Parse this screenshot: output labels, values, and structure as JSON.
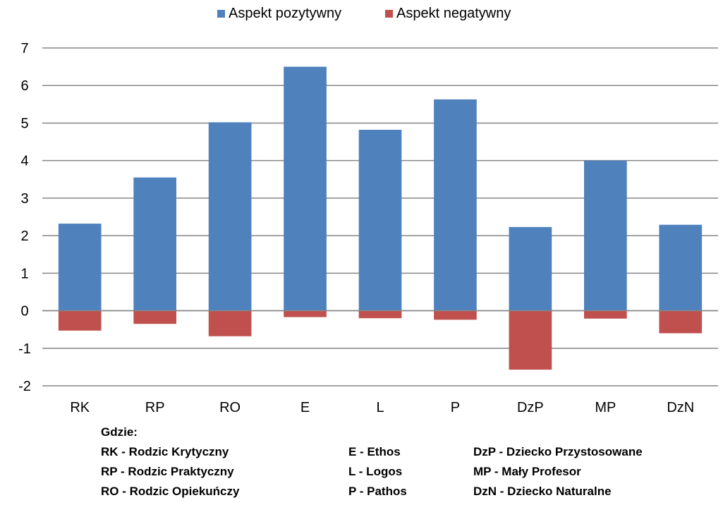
{
  "chart_data": {
    "type": "bar",
    "stacked": true,
    "categories": [
      "RK",
      "RP",
      "RO",
      "E",
      "L",
      "P",
      "DzP",
      "MP",
      "DzN"
    ],
    "series": [
      {
        "name": "Aspekt pozytywny",
        "color": "#4f81bd",
        "values": [
          2.32,
          3.55,
          5.02,
          6.5,
          4.82,
          5.63,
          2.23,
          4.0,
          2.29
        ]
      },
      {
        "name": "Aspekt negatywny",
        "color": "#c0504d",
        "values": [
          -0.53,
          -0.35,
          -0.68,
          -0.17,
          -0.2,
          -0.24,
          -1.57,
          -0.21,
          -0.6
        ]
      }
    ],
    "ylim": [
      -2,
      7
    ],
    "yticks": [
      "-2",
      "-1",
      "0",
      "1",
      "2",
      "3",
      "4",
      "5",
      "6",
      "7"
    ],
    "grid": true,
    "legend_position": "top"
  },
  "key": {
    "title": "Gdzie:",
    "columns": [
      [
        "RK - Rodzic Krytyczny",
        "RP - Rodzic Praktyczny",
        "RO - Rodzic Opiekuńczy"
      ],
      [
        "E - Ethos",
        "L - Logos",
        "P - Pathos"
      ],
      [
        "DzP - Dziecko Przystosowane",
        "MP - Mały Profesor",
        "DzN - Dziecko Naturalne"
      ]
    ]
  }
}
